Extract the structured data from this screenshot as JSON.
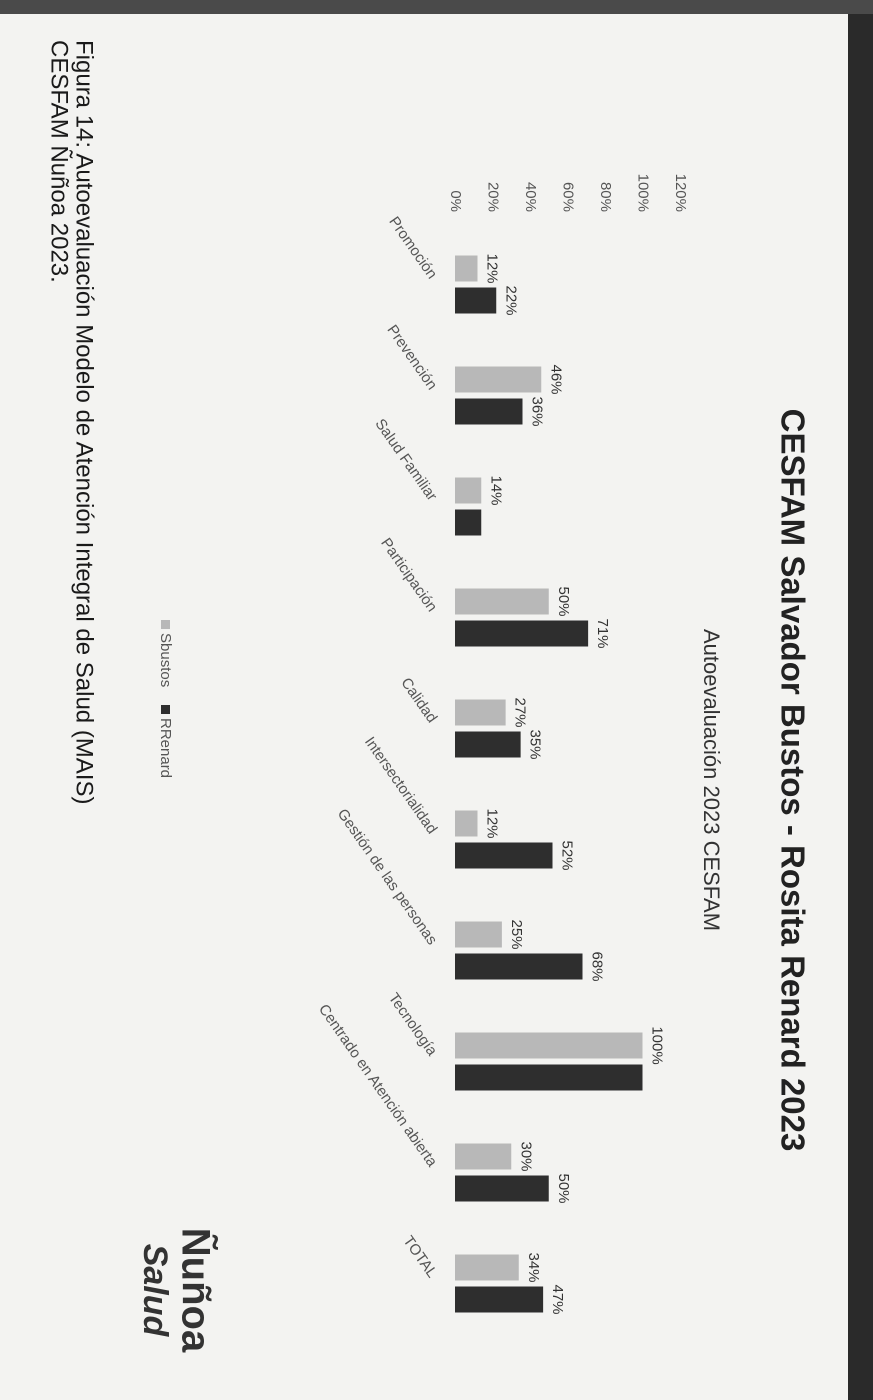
{
  "chart_data": {
    "type": "bar",
    "title": "CESFAM Salvador Bustos - Rosita Renard 2023",
    "subtitle": "Autoevaluación 2023 CESFAM",
    "categories": [
      "Promoción",
      "Prevención",
      "Salud Familiar",
      "Participación",
      "Calidad",
      "Intersectorialidad",
      "Gestión de las personas",
      "Tecnología",
      "Centrado en Atención abierta",
      "TOTAL"
    ],
    "series": [
      {
        "name": "Sbustos",
        "color": "#b8b8b8",
        "values": [
          12,
          46,
          14,
          50,
          27,
          12,
          25,
          100,
          30,
          34
        ],
        "value_labels": [
          "12%",
          "46%",
          "14%",
          "50%",
          "27%",
          "12%",
          "25%",
          "100%",
          "30%",
          "34%"
        ]
      },
      {
        "name": "RRenard",
        "color": "#2e2e2e",
        "values": [
          22,
          36,
          14,
          71,
          35,
          52,
          68,
          100,
          50,
          47
        ],
        "value_labels": [
          "22%",
          "36%",
          null,
          "71%",
          "35%",
          "52%",
          "68%",
          null,
          "50%",
          "47%"
        ]
      }
    ],
    "ylim": [
      0,
      120
    ],
    "yticks": [
      {
        "value": 0,
        "label": "0%"
      },
      {
        "value": 20,
        "label": "20%"
      },
      {
        "value": 40,
        "label": "40%"
      },
      {
        "value": 60,
        "label": "60%"
      },
      {
        "value": 80,
        "label": "80%"
      },
      {
        "value": 100,
        "label": "100%"
      },
      {
        "value": 120,
        "label": "120%"
      }
    ],
    "grid": false,
    "legend": "bottom"
  },
  "logo": [
    "Ñuñoa",
    "Salud"
  ],
  "caption": [
    "Figura 14: Autoevaluación Modelo de Atención Integral de Salud (MAIS)",
    "CESFAM Ñuñoa 2023."
  ]
}
